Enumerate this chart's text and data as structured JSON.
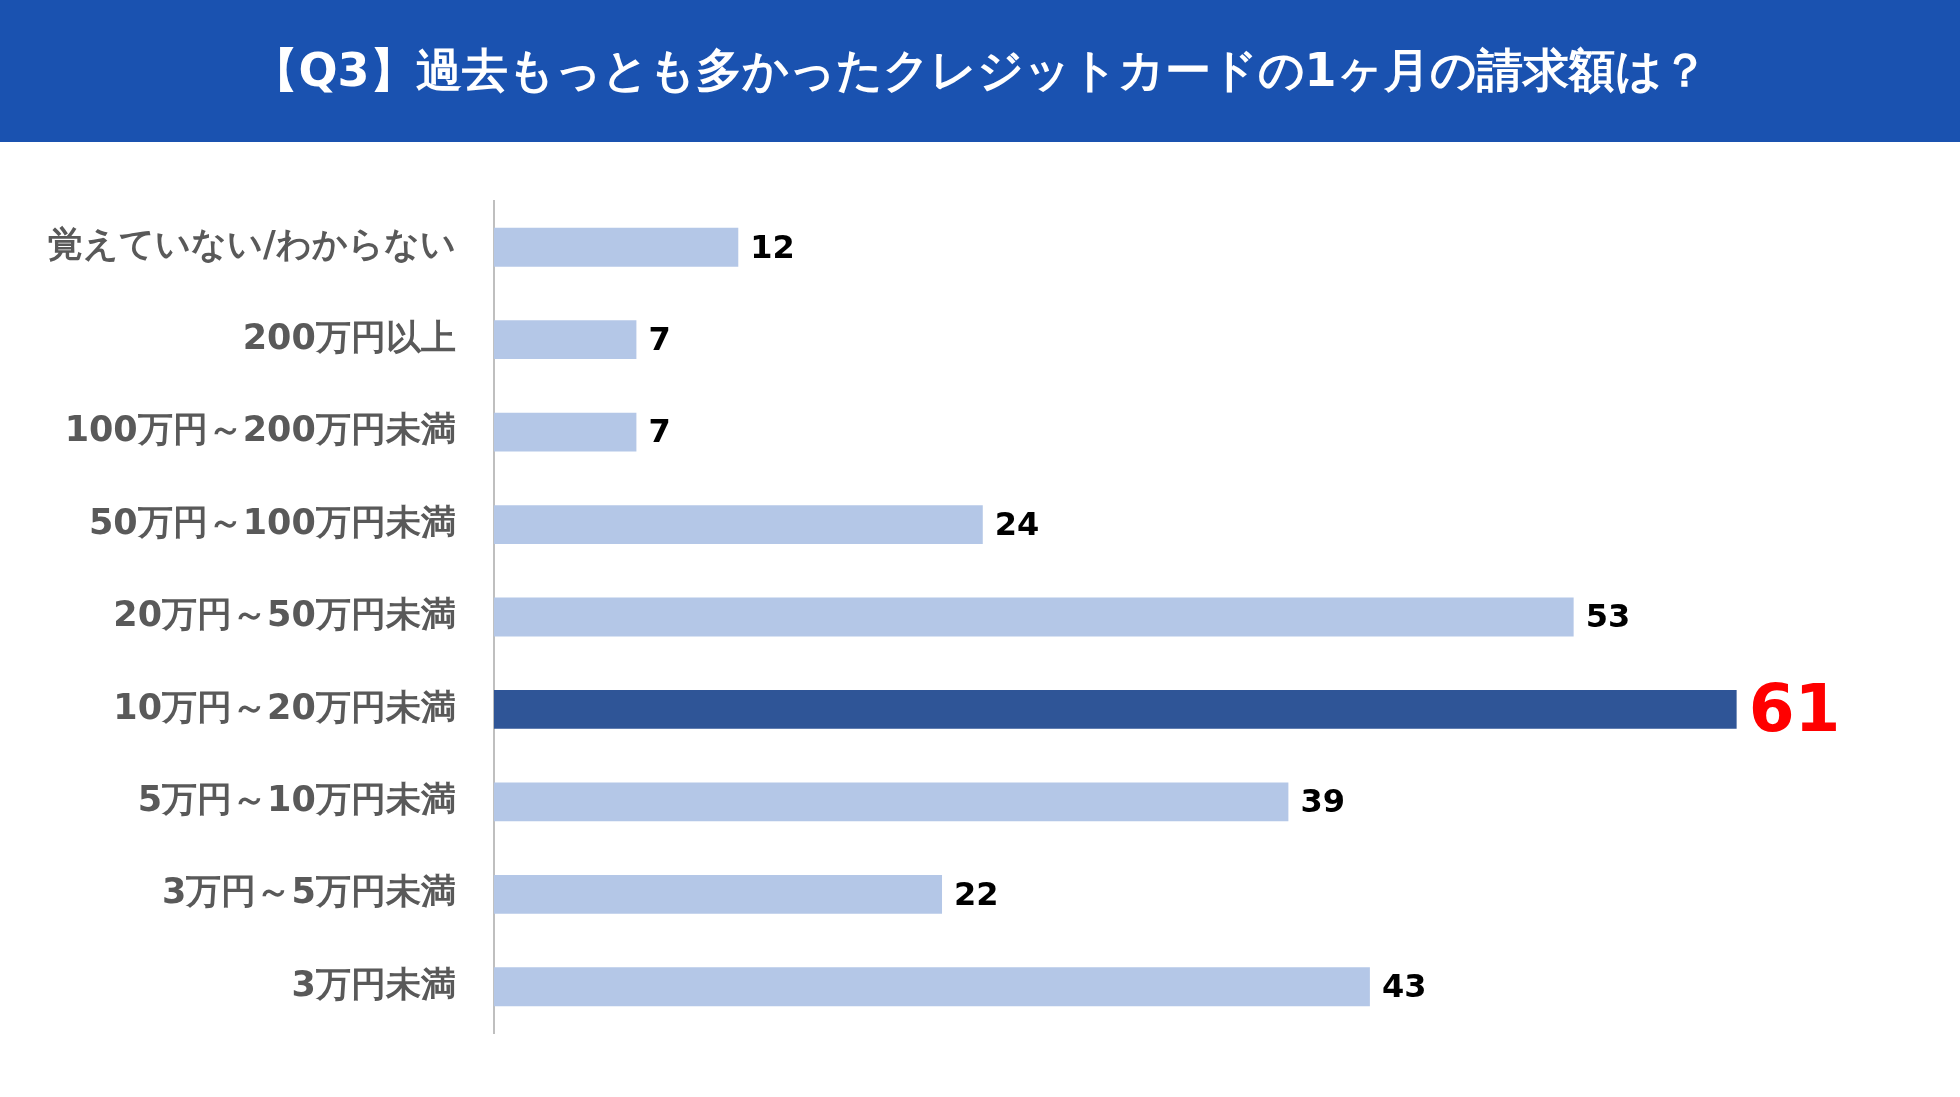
{
  "chart_data": {
    "type": "bar",
    "orientation": "horizontal",
    "title": "【Q3】過去もっとも多かったクレジットカードの1ヶ月の請求額は？",
    "categories": [
      "覚えていない/わからない",
      "200万円以上",
      "100万円～200万円未満",
      "50万円～100万円未満",
      "20万円～50万円未満",
      "10万円～20万円未満",
      "5万円～10万円未満",
      "3万円～5万円未満",
      "3万円未満"
    ],
    "values": [
      12,
      7,
      7,
      24,
      53,
      61,
      39,
      22,
      43
    ],
    "colors": [
      "#b4c7e7",
      "#b4c7e7",
      "#b4c7e7",
      "#b4c7e7",
      "#b4c7e7",
      "#2f5597",
      "#b4c7e7",
      "#b4c7e7",
      "#b4c7e7"
    ],
    "value_labels": [
      "12",
      "7",
      "7",
      "24",
      "53",
      null,
      "39",
      "22",
      "43"
    ],
    "annotations": [
      {
        "text": "61",
        "x": 61,
        "y": "10万円～20万円未満"
      }
    ]
  }
}
